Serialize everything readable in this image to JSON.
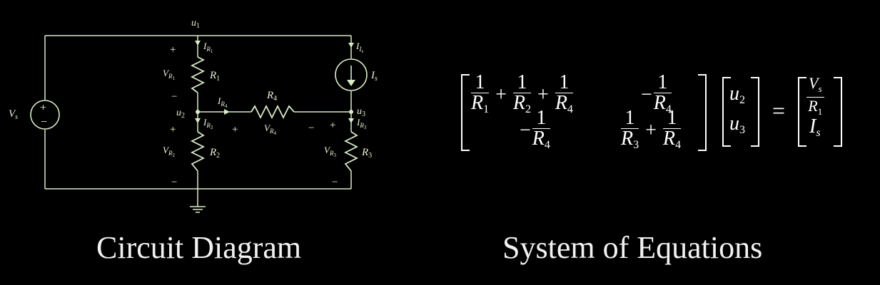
{
  "captions": {
    "left": "Circuit Diagram",
    "right": "System of Equations"
  },
  "circuit": {
    "node_u1": "u",
    "node_u1_sub": "1",
    "node_u2": "u",
    "node_u2_sub": "2",
    "node_u3": "u",
    "node_u3_sub": "3",
    "source_v": "V",
    "source_v_sub": "s",
    "current_source": "I",
    "current_source_sub": "s",
    "resistors": [
      {
        "label": "R",
        "sub": "1"
      },
      {
        "label": "R",
        "sub": "2"
      },
      {
        "label": "R",
        "sub": "3"
      },
      {
        "label": "R",
        "sub": "4"
      }
    ],
    "currents": {
      "IR1": {
        "main": "I",
        "sub": "R",
        "subsub": "1"
      },
      "IR2": {
        "main": "I",
        "sub": "R",
        "subsub": "2"
      },
      "IR3": {
        "main": "I",
        "sub": "R",
        "subsub": "3"
      },
      "IR4": {
        "main": "I",
        "sub": "R",
        "subsub": "4"
      },
      "IIs": {
        "main": "I",
        "sub": "I",
        "subsub": "s"
      }
    },
    "voltages": {
      "VR1": {
        "main": "V",
        "sub": "R",
        "subsub": "1"
      },
      "VR2": {
        "main": "V",
        "sub": "R",
        "subsub": "2"
      },
      "VR3": {
        "main": "V",
        "sub": "R",
        "subsub": "3"
      },
      "VR4": {
        "main": "V",
        "sub": "R",
        "subsub": "4"
      }
    },
    "plus": "+",
    "minus": "−",
    "colors": {
      "wire": "#d8ecc6",
      "text": "#e6f4d8",
      "background": "#000000"
    }
  },
  "equation": {
    "m11_num": "1",
    "m11_den_a": "R",
    "m11_den_a_sub": "1",
    "m11_plus1": "+",
    "m11_den_b": "R",
    "m11_den_b_sub": "2",
    "m11_plus2": "+",
    "m11_den_c": "R",
    "m11_den_c_sub": "4",
    "m12_minus": "−",
    "m12_den": "R",
    "m12_den_sub": "4",
    "m21_minus": "−",
    "m21_den": "R",
    "m21_den_sub": "4",
    "m22_den_a": "R",
    "m22_den_a_sub": "3",
    "m22_plus": "+",
    "m22_den_b": "R",
    "m22_den_b_sub": "4",
    "x1": "u",
    "x1_sub": "2",
    "x2": "u",
    "x2_sub": "3",
    "equals": "=",
    "b1_num": "V",
    "b1_num_sub": "s",
    "b1_den": "R",
    "b1_den_sub": "1",
    "b2": "I",
    "b2_sub": "s"
  }
}
